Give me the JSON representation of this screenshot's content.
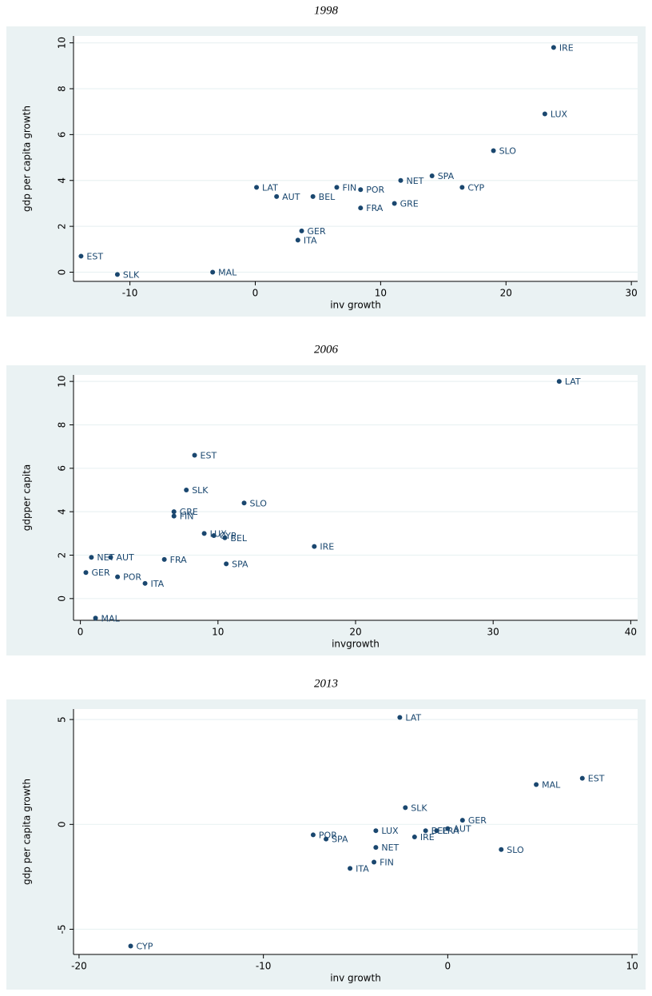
{
  "chart_data": [
    {
      "type": "scatter",
      "title": "1998",
      "x_label": "inv growth",
      "y_label": "gdp per capita growth",
      "color": "#1a476f",
      "grid": true,
      "labels": [
        "EST",
        "SLK",
        "MAL",
        "LAT",
        "AUT",
        "BEL",
        "GER",
        "ITA",
        "FIN",
        "POR",
        "FRA",
        "GRE",
        "NET",
        "SPA",
        "CYP",
        "SLO",
        "LUX",
        "IRE"
      ],
      "x": [
        -13.9,
        -11.0,
        -3.4,
        0.1,
        1.7,
        4.6,
        3.7,
        3.4,
        6.5,
        8.4,
        8.4,
        11.1,
        11.6,
        14.1,
        16.5,
        19.0,
        23.1,
        23.8
      ],
      "y": [
        0.7,
        -0.1,
        0,
        3.7,
        3.3,
        3.3,
        1.8,
        1.4,
        3.7,
        3.6,
        2.8,
        3.0,
        4.0,
        4.2,
        3.7,
        5.3,
        6.9,
        9.8
      ],
      "xlim": [
        -14.5,
        30.5
      ],
      "ylim": [
        -0.4,
        10.3
      ],
      "xticks": [
        -10,
        0,
        10,
        20,
        30
      ],
      "yticks": [
        0,
        2,
        4,
        6,
        8,
        10
      ]
    },
    {
      "type": "scatter",
      "title": "2006",
      "x_label": "invgrowth",
      "y_label": "gdpper capita",
      "color": "#1a476f",
      "grid": true,
      "labels": [
        "LAT",
        "EST",
        "SLK",
        "SLO",
        "GRE",
        "FIN",
        "LUX",
        "CYP",
        "BEL",
        "IRE",
        "NET",
        "AUT",
        "FRA",
        "SPA",
        "GER",
        "POR",
        "ITA",
        "MAL"
      ],
      "x": [
        34.8,
        8.3,
        7.7,
        11.9,
        6.8,
        6.8,
        9.0,
        9.7,
        10.5,
        17.0,
        0.8,
        2.2,
        6.1,
        10.6,
        0.4,
        2.7,
        4.7,
        1.1
      ],
      "y": [
        10.0,
        6.6,
        5.0,
        4.4,
        4.0,
        3.8,
        3.0,
        2.9,
        2.8,
        2.4,
        1.9,
        1.9,
        1.8,
        1.6,
        1.2,
        1.0,
        0.7,
        -0.9
      ],
      "xlim": [
        -0.5,
        40.5
      ],
      "ylim": [
        -1.0,
        10.3
      ],
      "xticks": [
        0,
        10,
        20,
        30,
        40
      ],
      "yticks": [
        0,
        2,
        4,
        6,
        8,
        10
      ]
    },
    {
      "type": "scatter",
      "title": "2013",
      "x_label": "inv growth",
      "y_label": "gdp per capita growth",
      "color": "#1a476f",
      "grid": true,
      "labels": [
        "LAT",
        "EST",
        "MAL",
        "SLK",
        "GER",
        "BEL",
        "FRA",
        "AUT",
        "IRE",
        "LUX",
        "POR",
        "SPA",
        "NET",
        "SLO",
        "FIN",
        "ITA",
        "CYP"
      ],
      "x": [
        -2.6,
        7.3,
        4.8,
        -2.3,
        0.8,
        -1.2,
        -0.6,
        0,
        -1.8,
        -3.9,
        -7.3,
        -6.6,
        -3.9,
        2.9,
        -4.0,
        -5.3,
        -17.2
      ],
      "y": [
        5.1,
        2.2,
        1.9,
        0.8,
        0.2,
        -0.3,
        -0.3,
        -0.2,
        -0.6,
        -0.3,
        -0.5,
        -0.7,
        -1.1,
        -1.2,
        -1.8,
        -2.1,
        -5.8
      ],
      "xlim": [
        -20.3,
        10.3
      ],
      "ylim": [
        -6.2,
        5.5
      ],
      "xticks": [
        -20,
        -10,
        0,
        10
      ],
      "yticks": [
        -5,
        0,
        5
      ]
    }
  ]
}
